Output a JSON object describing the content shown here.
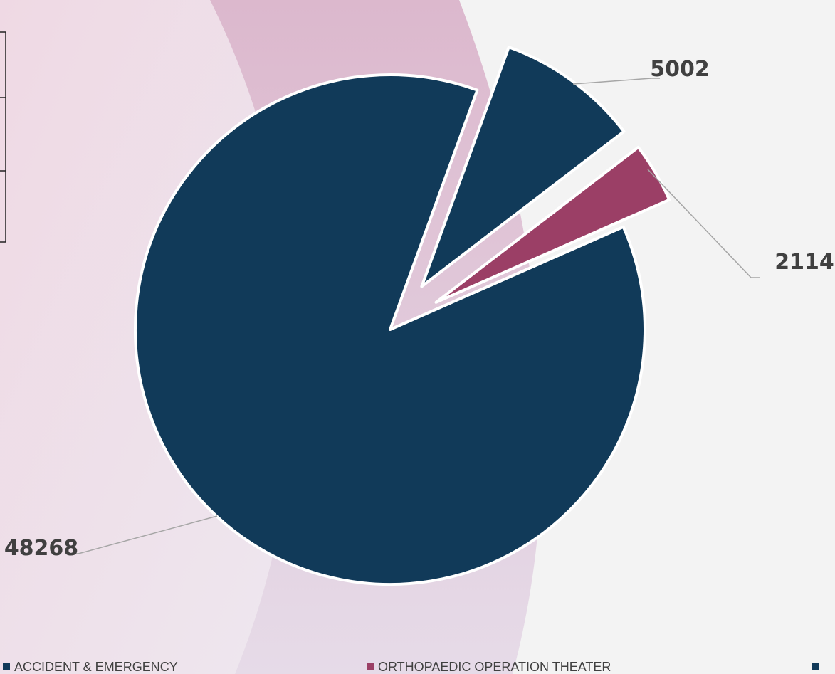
{
  "chart_data": {
    "type": "pie",
    "categories": [
      "ACCIDENT & EMERGENCY",
      "ORTHOPAEDIC OPERATION THEATER",
      null
    ],
    "values": [
      48268,
      2114,
      5002
    ],
    "colors": [
      "#113a59",
      "#9b3f66",
      "#113a59"
    ]
  }
}
